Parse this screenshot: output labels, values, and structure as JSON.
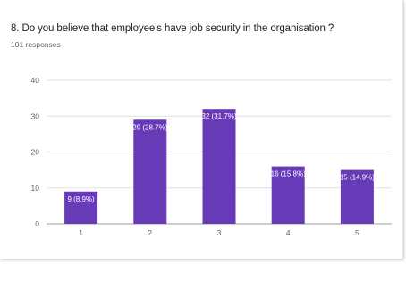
{
  "question": {
    "title": "8. Do you  believe that employee's have job security in the  organisation ?",
    "responses": "101 responses"
  },
  "colors": {
    "bar": "#673ab7",
    "grid": "#e0e0e0",
    "axis_text": "#5f6368"
  },
  "chart_data": {
    "type": "bar",
    "title": "8. Do you  believe that employee's have job security in the  organisation ?",
    "subtitle": "101 responses",
    "xlabel": "",
    "ylabel": "",
    "categories": [
      "1",
      "2",
      "3",
      "4",
      "5"
    ],
    "values": [
      9,
      29,
      32,
      16,
      15
    ],
    "data_labels": [
      "9 (8.9%)",
      "29 (28.7%)",
      "32 (31.7%)",
      "16 (15.8%)",
      "15 (14.9%)"
    ],
    "ylim": [
      0,
      40
    ],
    "yticks": [
      "0",
      "10",
      "20",
      "30",
      "40"
    ],
    "grid": true,
    "legend": "none"
  }
}
